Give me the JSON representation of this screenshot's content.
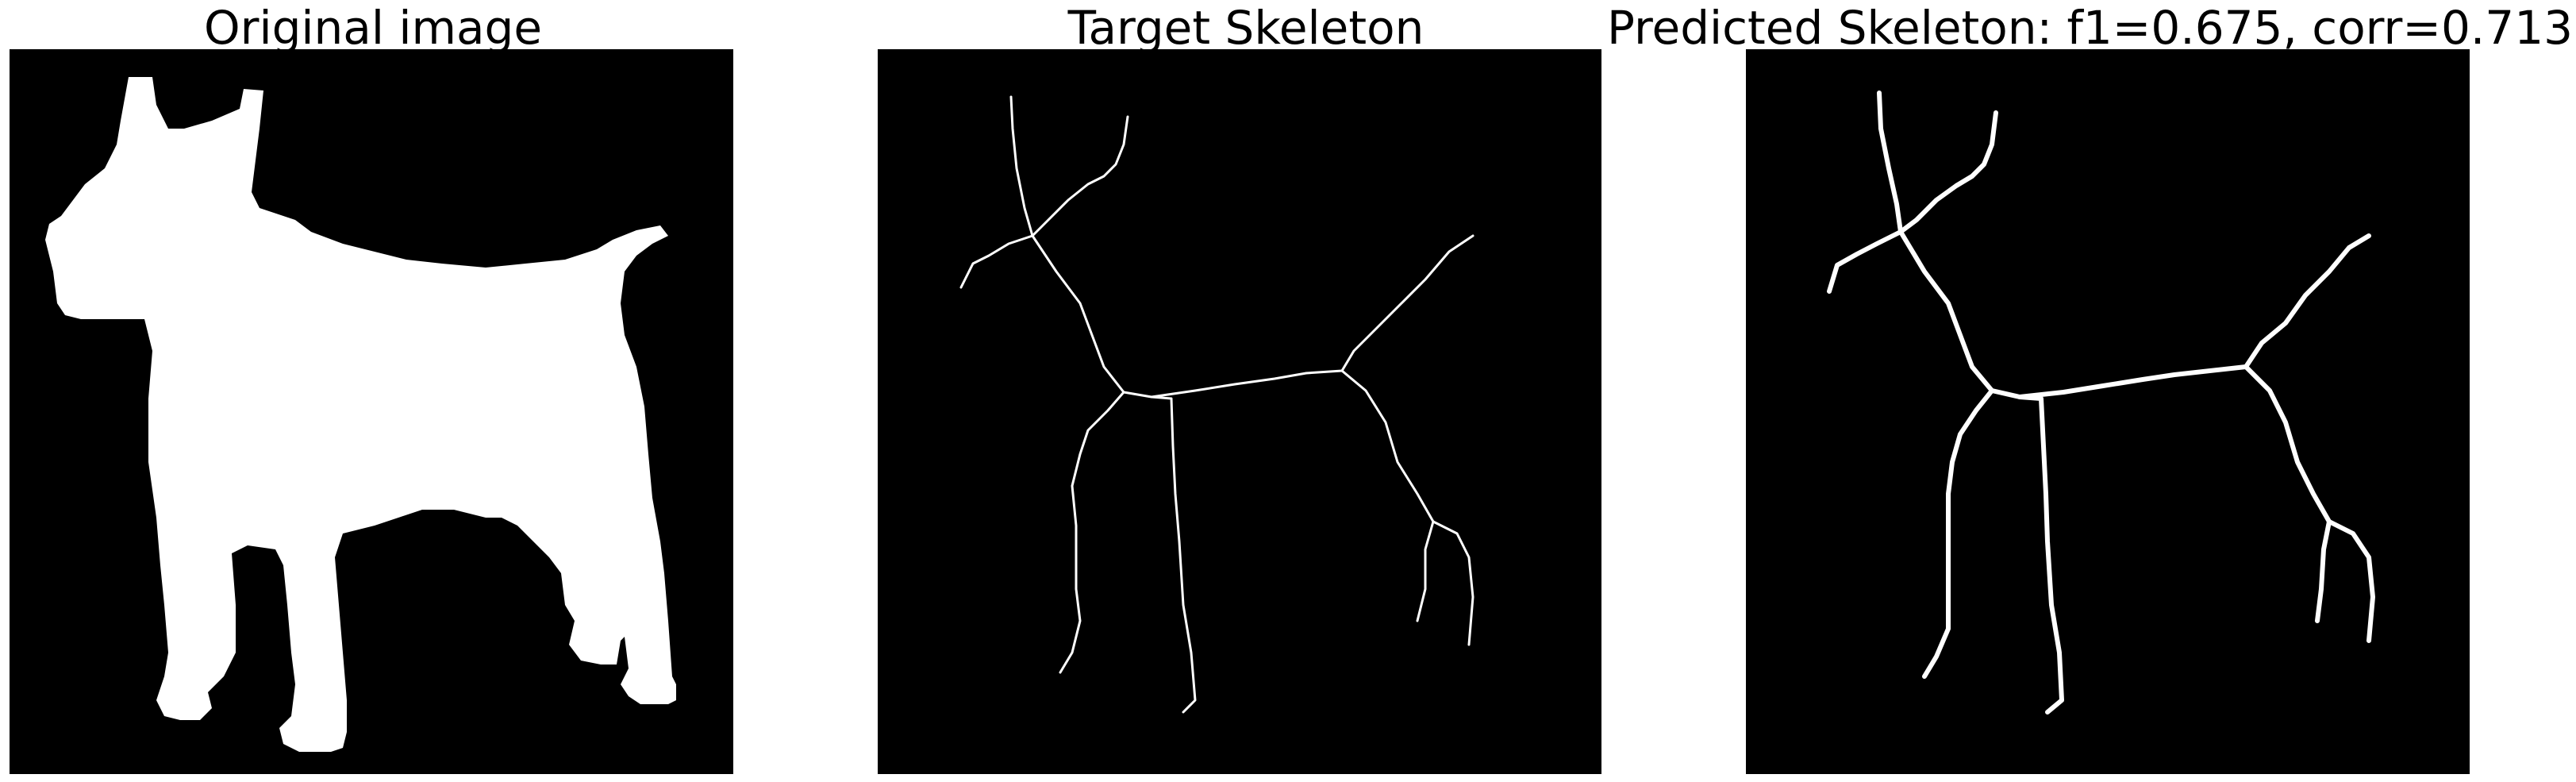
{
  "panels": [
    {
      "title": "Original image"
    },
    {
      "title": "Target Skeleton"
    },
    {
      "title": "Predicted Skeleton: f1=0.675, corr=0.713"
    }
  ],
  "colors": {
    "background": "#000000",
    "foreground": "#ffffff"
  }
}
